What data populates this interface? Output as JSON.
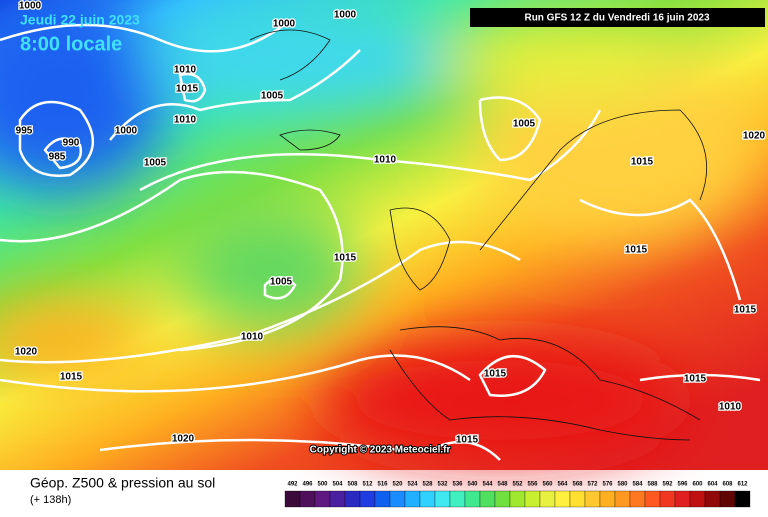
{
  "header": {
    "date": "Jeudi 22 juin 2023",
    "time": "8:00 locale",
    "run": "Run GFS 12 Z du Vendredi 16 juin 2023"
  },
  "copyright": "Copyright © 2023 Meteociel.fr",
  "footer": {
    "title": "Géop. Z500 & pression au sol",
    "lead": "(+ 138h)"
  },
  "legend": {
    "ticks": [
      492,
      496,
      500,
      504,
      508,
      512,
      516,
      520,
      524,
      528,
      532,
      536,
      540,
      544,
      548,
      552,
      556,
      560,
      564,
      568,
      572,
      576,
      580,
      584,
      588,
      592,
      596,
      600,
      604,
      608,
      612
    ],
    "colors": [
      "#3b0a3b",
      "#4f0f5a",
      "#5e1880",
      "#4a1fa0",
      "#2a2ac0",
      "#1e3ce0",
      "#1060f0",
      "#1a8cff",
      "#20b0ff",
      "#30d0ff",
      "#40e8f0",
      "#40f0c0",
      "#40e890",
      "#50e060",
      "#70e040",
      "#a0e830",
      "#c8f030",
      "#e8f040",
      "#fff040",
      "#ffe030",
      "#ffc830",
      "#ffb020",
      "#ff9820",
      "#ff7820",
      "#ff5820",
      "#f03820",
      "#e02020",
      "#c01010",
      "#900808",
      "#600404",
      "#000000"
    ]
  },
  "isobars": [
    1000,
    1000,
    1000,
    1010,
    1015,
    1010,
    1005,
    995,
    990,
    985,
    1000,
    1005,
    1010,
    1005,
    1015,
    1020,
    1015,
    1005,
    1010,
    1015,
    1015,
    1020,
    1015,
    1015,
    1015,
    1010,
    1020,
    1015
  ]
}
